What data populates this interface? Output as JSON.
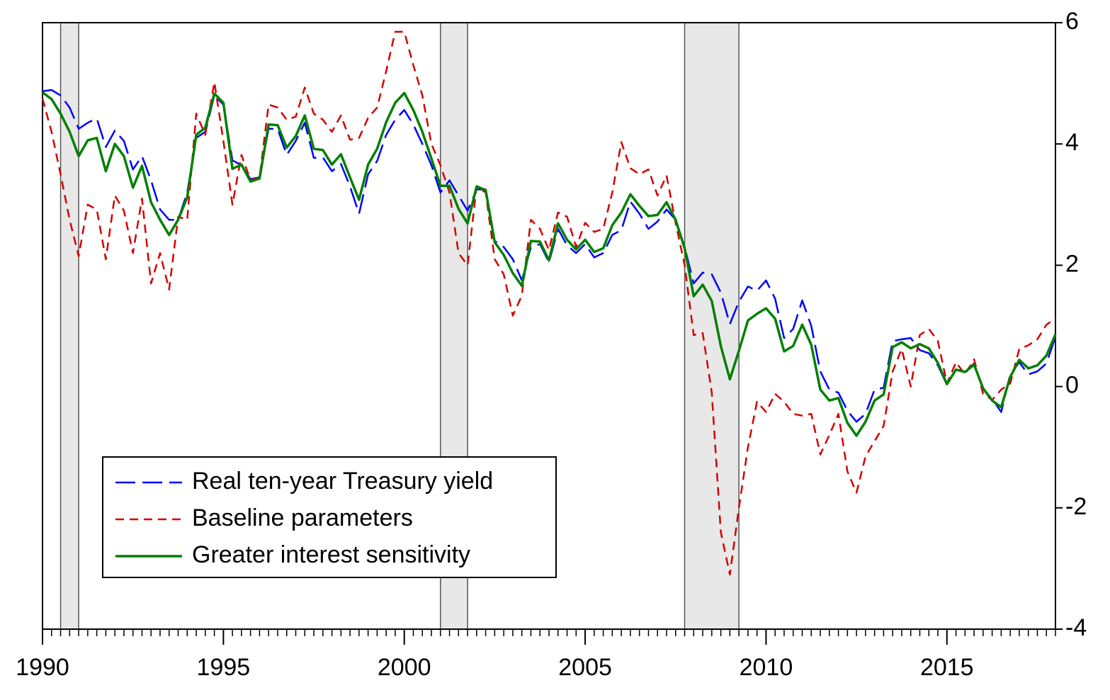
{
  "chart_data": {
    "type": "line",
    "x": [
      1990,
      1990.25,
      1990.5,
      1990.75,
      1991,
      1991.25,
      1991.5,
      1991.75,
      1992,
      1992.25,
      1992.5,
      1992.75,
      1993,
      1993.25,
      1993.5,
      1993.75,
      1994,
      1994.25,
      1994.5,
      1994.75,
      1995,
      1995.25,
      1995.5,
      1995.75,
      1996,
      1996.25,
      1996.5,
      1996.75,
      1997,
      1997.25,
      1997.5,
      1997.75,
      1998,
      1998.25,
      1998.5,
      1998.75,
      1999,
      1999.25,
      1999.5,
      1999.75,
      2000,
      2000.25,
      2000.5,
      2000.75,
      2001,
      2001.25,
      2001.5,
      2001.75,
      2002,
      2002.25,
      2002.5,
      2002.75,
      2003,
      2003.25,
      2003.5,
      2003.75,
      2004,
      2004.25,
      2004.5,
      2004.75,
      2005,
      2005.25,
      2005.5,
      2005.75,
      2006,
      2006.25,
      2006.5,
      2006.75,
      2007,
      2007.25,
      2007.5,
      2007.75,
      2008,
      2008.25,
      2008.5,
      2008.75,
      2009,
      2009.25,
      2009.5,
      2009.75,
      2010,
      2010.25,
      2010.5,
      2010.75,
      2011,
      2011.25,
      2011.5,
      2011.75,
      2012,
      2012.25,
      2012.5,
      2012.75,
      2013,
      2013.25,
      2013.5,
      2013.75,
      2014,
      2014.25,
      2014.5,
      2014.75,
      2015,
      2015.25,
      2015.5,
      2015.75,
      2016,
      2016.25,
      2016.5,
      2016.75,
      2017,
      2017.25,
      2017.5,
      2017.75,
      2018
    ],
    "series": [
      {
        "name": "Real ten-year Treasury yield",
        "color": "#0000ff",
        "linestyle": "long-dash",
        "values": [
          4.87,
          4.89,
          4.8,
          4.6,
          4.25,
          4.35,
          4.42,
          3.95,
          4.22,
          4.05,
          3.58,
          3.8,
          3.4,
          2.92,
          2.75,
          2.75,
          3.2,
          4.1,
          4.2,
          4.8,
          4.65,
          3.73,
          3.65,
          3.42,
          3.45,
          4.25,
          4.25,
          3.82,
          4.05,
          4.35,
          3.77,
          3.78,
          3.55,
          3.67,
          3.3,
          2.85,
          3.5,
          3.72,
          4.15,
          4.4,
          4.56,
          4.32,
          4.0,
          3.65,
          3.2,
          3.4,
          3.15,
          2.9,
          3.25,
          3.25,
          2.4,
          2.3,
          2.1,
          1.75,
          2.3,
          2.35,
          2.05,
          2.6,
          2.33,
          2.2,
          2.35,
          2.13,
          2.2,
          2.5,
          2.58,
          3.05,
          2.85,
          2.6,
          2.72,
          2.92,
          2.75,
          2.3,
          1.7,
          1.88,
          1.85,
          1.55,
          1.03,
          1.4,
          1.65,
          1.58,
          1.75,
          1.45,
          0.8,
          0.95,
          1.42,
          1.0,
          0.25,
          -0.05,
          -0.1,
          -0.4,
          -0.58,
          -0.45,
          -0.05,
          -0.02,
          0.75,
          0.78,
          0.8,
          0.6,
          0.55,
          0.35,
          0.03,
          0.28,
          0.25,
          0.38,
          -0.05,
          -0.2,
          -0.42,
          0.2,
          0.4,
          0.2,
          0.25,
          0.38,
          0.82
        ]
      },
      {
        "name": "Baseline parameters",
        "color": "#d40000",
        "linestyle": "dash",
        "values": [
          4.75,
          4.2,
          3.5,
          2.75,
          2.15,
          3.0,
          2.92,
          2.1,
          3.15,
          2.9,
          2.2,
          3.1,
          1.7,
          2.2,
          1.6,
          2.8,
          2.75,
          4.5,
          4.15,
          5.02,
          4.05,
          3.0,
          3.82,
          3.4,
          3.45,
          4.65,
          4.6,
          4.4,
          4.45,
          4.93,
          4.5,
          4.4,
          4.2,
          4.47,
          4.07,
          4.1,
          4.43,
          4.6,
          5.2,
          5.85,
          5.85,
          5.3,
          4.8,
          4.0,
          3.65,
          3.2,
          2.2,
          2.0,
          3.3,
          3.2,
          2.1,
          1.85,
          1.17,
          1.5,
          2.75,
          2.6,
          2.25,
          2.87,
          2.8,
          2.3,
          2.7,
          2.55,
          2.6,
          3.2,
          4.03,
          3.6,
          3.5,
          3.58,
          3.15,
          3.48,
          2.7,
          2.0,
          0.85,
          0.88,
          -0.1,
          -2.4,
          -3.1,
          -2.0,
          -1.0,
          -0.25,
          -0.42,
          -0.12,
          -0.25,
          -0.45,
          -0.48,
          -0.45,
          -1.12,
          -0.8,
          -0.45,
          -1.4,
          -1.75,
          -1.15,
          -0.9,
          -0.65,
          0.25,
          0.62,
          0.0,
          0.85,
          0.95,
          0.75,
          0.05,
          0.4,
          0.2,
          0.45,
          -0.12,
          -0.22,
          -0.05,
          0.05,
          0.62,
          0.68,
          0.78,
          1.02,
          1.12
        ]
      },
      {
        "name": "Greater interest sensitivity",
        "color": "#008000",
        "linestyle": "solid",
        "values": [
          4.85,
          4.74,
          4.5,
          4.2,
          3.8,
          4.06,
          4.1,
          3.55,
          4.0,
          3.8,
          3.28,
          3.64,
          3.04,
          2.75,
          2.5,
          2.75,
          3.12,
          4.15,
          4.27,
          4.83,
          4.68,
          3.59,
          3.66,
          3.38,
          3.43,
          4.32,
          4.31,
          3.94,
          4.13,
          4.47,
          3.92,
          3.9,
          3.66,
          3.83,
          3.45,
          3.08,
          3.66,
          3.92,
          4.36,
          4.68,
          4.84,
          4.56,
          4.2,
          3.76,
          3.31,
          3.31,
          2.93,
          2.69,
          3.3,
          3.24,
          2.38,
          2.17,
          1.87,
          1.66,
          2.4,
          2.39,
          2.08,
          2.69,
          2.42,
          2.26,
          2.42,
          2.22,
          2.28,
          2.66,
          2.87,
          3.17,
          2.98,
          2.81,
          2.83,
          3.04,
          2.75,
          2.28,
          1.49,
          1.68,
          1.41,
          0.67,
          0.12,
          0.59,
          1.09,
          1.2,
          1.29,
          1.12,
          0.58,
          0.67,
          1.02,
          0.69,
          -0.05,
          -0.23,
          -0.19,
          -0.6,
          -0.81,
          -0.58,
          -0.23,
          -0.13,
          0.65,
          0.73,
          0.63,
          0.7,
          0.63,
          0.39,
          0.04,
          0.28,
          0.24,
          0.36,
          -0.03,
          -0.23,
          -0.34,
          0.16,
          0.44,
          0.3,
          0.35,
          0.51,
          0.86
        ]
      }
    ],
    "shaded_periods": [
      [
        1990.5,
        1991
      ],
      [
        2001,
        2001.75
      ],
      [
        2007.75,
        2009.25
      ]
    ],
    "shade_color": "#e8e8e8",
    "xlim": [
      1990,
      2018
    ],
    "xticks": [
      1990,
      1995,
      2000,
      2005,
      2010,
      2015
    ],
    "ylim": [
      -4,
      6
    ],
    "yticks": [
      6,
      4,
      2,
      0,
      -2,
      -4
    ],
    "y_axis_side": "right",
    "legend_position": "lower left",
    "grid": false
  }
}
